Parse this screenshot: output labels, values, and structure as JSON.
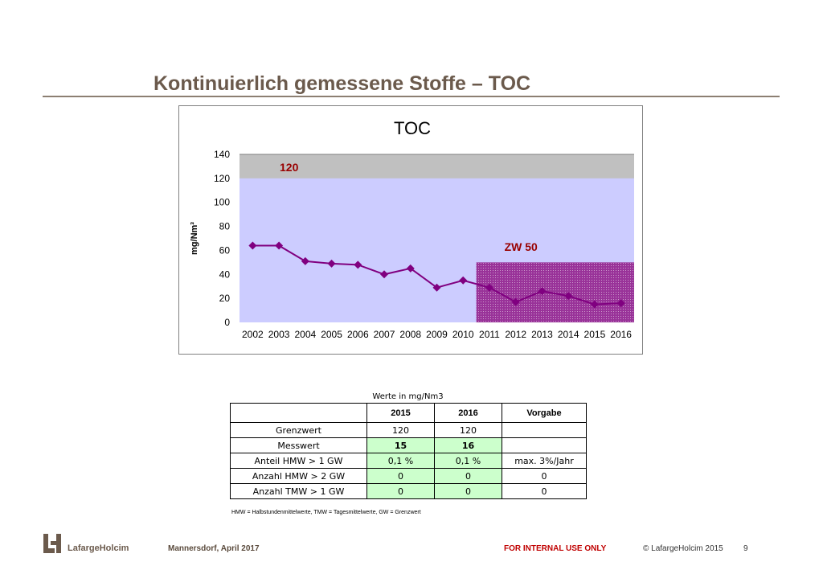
{
  "slide": {
    "title": "Kontinuierlich gemessene Stoffe  –  TOC"
  },
  "chart_data": {
    "type": "line",
    "title": "TOC",
    "ylabel": "mg/Nm³",
    "xlabel": "",
    "ylim": [
      0,
      140
    ],
    "yticks": [
      0,
      20,
      40,
      60,
      80,
      100,
      120,
      140
    ],
    "x": [
      "2002",
      "2003",
      "2004",
      "2005",
      "2006",
      "2007",
      "2008",
      "2009",
      "2010",
      "2011",
      "2012",
      "2013",
      "2014",
      "2015",
      "2016"
    ],
    "series": [
      {
        "values": [
          64,
          64,
          51,
          49,
          48,
          40,
          45,
          29,
          35,
          29,
          17,
          26,
          22,
          15,
          16
        ],
        "color": "#800080"
      }
    ],
    "bands": [
      {
        "label": "120",
        "from": 120,
        "to": 140,
        "color": "#c0c0c0"
      },
      {
        "label": "ZW 50",
        "from": 0,
        "to": 50,
        "x_start": "2011",
        "color": "#993399"
      }
    ],
    "plot_background": "#ccccff",
    "label_color": "#990000",
    "grid": false,
    "legend": "none"
  },
  "table": {
    "caption": "Werte in mg/Nm3",
    "headers": [
      "",
      "2015",
      "2016",
      "Vorgabe"
    ],
    "rows": [
      {
        "label": "Grenzwert",
        "y2015": "120",
        "y2016": "120",
        "vorgabe": ""
      },
      {
        "label": "Messwert",
        "y2015": "15",
        "y2016": "16",
        "vorgabe": ""
      },
      {
        "label": "Anteil HMW > 1 GW",
        "y2015": "0,1 %",
        "y2016": "0,1 %",
        "vorgabe": "max. 3%/Jahr"
      },
      {
        "label": "Anzahl HMW > 2 GW",
        "y2015": "0",
        "y2016": "0",
        "vorgabe": "0"
      },
      {
        "label": "Anzahl TMW > 1 GW",
        "y2015": "0",
        "y2016": "0",
        "vorgabe": "0"
      }
    ],
    "footnote": "HMW = Halbstundenmittelwerte, TMW = Tagesmittelwerte, GW = Grenzwert"
  },
  "footer": {
    "brand": "LafargeHolcim",
    "date": "Mannersdorf, April 2017",
    "internal": "FOR INTERNAL USE ONLY",
    "copyright": "© LafargeHolcim 2015",
    "page": "9"
  }
}
